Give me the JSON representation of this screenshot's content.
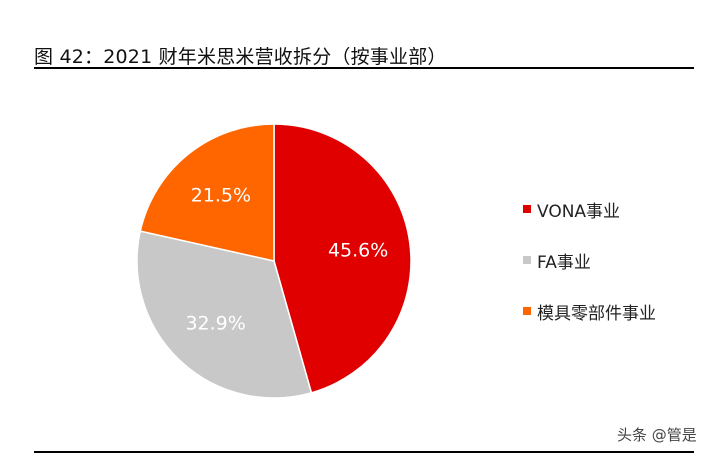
{
  "title": "图  42：2021 财年米思米营收拆分（按事业部）",
  "watermark": "头条 @管是",
  "colors": {
    "vona": "#E00000",
    "fa": "#C8C8C8",
    "mold": "#FF6600"
  },
  "chart_data": {
    "type": "pie",
    "title": "图 42：2021 财年米思米营收拆分（按事业部）",
    "categories": [
      "VONA事业",
      "FA事业",
      "模具零部件事业"
    ],
    "values": [
      45.6,
      32.9,
      21.5
    ],
    "labels": [
      "45.6%",
      "32.9%",
      "21.5%"
    ],
    "colors": [
      "#E00000",
      "#C8C8C8",
      "#FF6600"
    ],
    "start_angle": "12 o'clock, clockwise",
    "legend_position": "right"
  },
  "legend": [
    {
      "label": "VONA事业",
      "color": "#E00000"
    },
    {
      "label": "FA事业",
      "color": "#C8C8C8"
    },
    {
      "label": "模具零部件事业",
      "color": "#FF6600"
    }
  ]
}
